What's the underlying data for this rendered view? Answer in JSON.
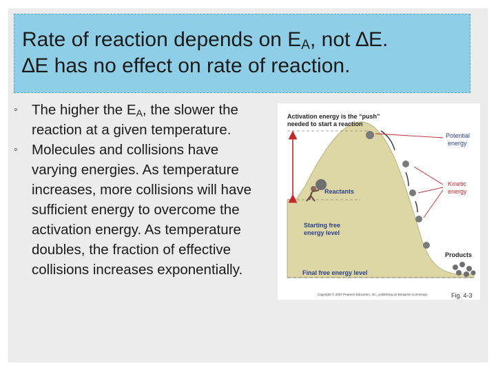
{
  "title": {
    "line1_before": "Rate of reaction depends on E",
    "line1_sub": "A",
    "line1_after": ", not ∆E.",
    "line2": "∆E has no effect on rate of reaction."
  },
  "bullets": [
    {
      "marker": "◦",
      "before": "The higher the E",
      "sub": "A",
      "after": ", the slower the reaction at a given temperature."
    },
    {
      "marker": "◦",
      "text": "Molecules and collisions have varying energies. As temperature increases, more collisions will have sufficient energy to overcome the activation energy. As temperature doubles, the fraction of effective collisions increases exponentially."
    }
  ],
  "figure": {
    "heading_line1": "Activation energy is the “push”",
    "heading_line2": "needed to start a reaction",
    "potential_line1": "Potential",
    "potential_line2": "energy",
    "kinetic_line1": "Kinetic",
    "kinetic_line2": "energy",
    "reactants": "Reactants",
    "starting_line1": "Starting free",
    "starting_line2": "energy level",
    "products": "Products",
    "final_level": "Final free energy level",
    "copyright": "Copyright © 2007 Pearson Education, Inc., publishing as Benjamin Cummings.",
    "fig_label": "Fig. 4-3",
    "colors": {
      "hill": "#ddd7a6",
      "accent_red": "#c0282a",
      "label_blue": "#2a3f8f",
      "ball": "#6f6f6f"
    }
  }
}
